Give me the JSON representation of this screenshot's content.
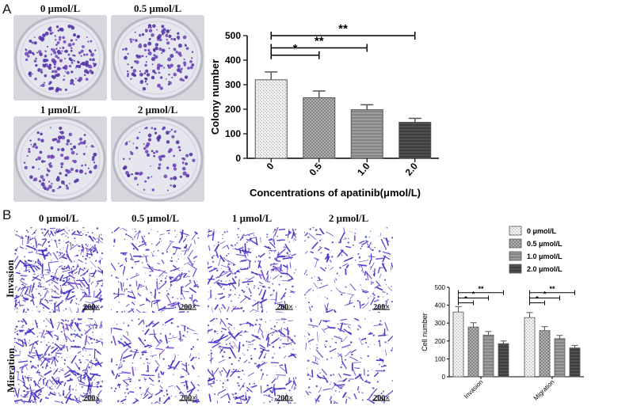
{
  "panels": {
    "a_letter": "A",
    "b_letter": "B"
  },
  "colony_images": {
    "labels": [
      "0 μmol/L",
      "0.5 μmol/L",
      "1 μmol/L",
      "2 μmol/L"
    ]
  },
  "transwell_images": {
    "column_labels": [
      "0 μmol/L",
      "0.5 μmol/L",
      "1 μmol/L",
      "2 μmol/L"
    ],
    "row_labels": [
      "Invasion",
      "Migration"
    ],
    "magnification": "200×"
  },
  "chart_data": [
    {
      "type": "bar",
      "categories": [
        "0",
        "0.5",
        "1.0",
        "2.0"
      ],
      "values": [
        320,
        247,
        198,
        147
      ],
      "errors": [
        32,
        27,
        20,
        16
      ],
      "xlabel": "Concentrations of apatinib(μmol/L)",
      "ylabel": "Colony number",
      "ylim": [
        0,
        500
      ],
      "yticks": [
        "0",
        "100",
        "200",
        "300",
        "400",
        "500"
      ],
      "significance": [
        {
          "from": 0,
          "to": 1,
          "label": "*"
        },
        {
          "from": 0,
          "to": 2,
          "label": "**"
        },
        {
          "from": 0,
          "to": 3,
          "label": "**"
        }
      ]
    },
    {
      "type": "bar",
      "categories": [
        "Invasion",
        "Migration"
      ],
      "series": [
        {
          "name": "0 μmol/L",
          "values": [
            362,
            331
          ],
          "errors": [
            30,
            28
          ]
        },
        {
          "name": "0.5 μmol/L",
          "values": [
            278,
            258
          ],
          "errors": [
            24,
            22
          ]
        },
        {
          "name": "1.0 μmol/L",
          "values": [
            233,
            213
          ],
          "errors": [
            20,
            18
          ]
        },
        {
          "name": "2.0 μmol/L",
          "values": [
            185,
            161
          ],
          "errors": [
            15,
            14
          ]
        }
      ],
      "ylabel": "Cell number",
      "ylim": [
        0,
        500
      ],
      "yticks": [
        "0",
        "100",
        "200",
        "300",
        "400",
        "500"
      ],
      "legend": "top-right",
      "significance_labels": [
        "*",
        "*",
        "**"
      ]
    }
  ]
}
